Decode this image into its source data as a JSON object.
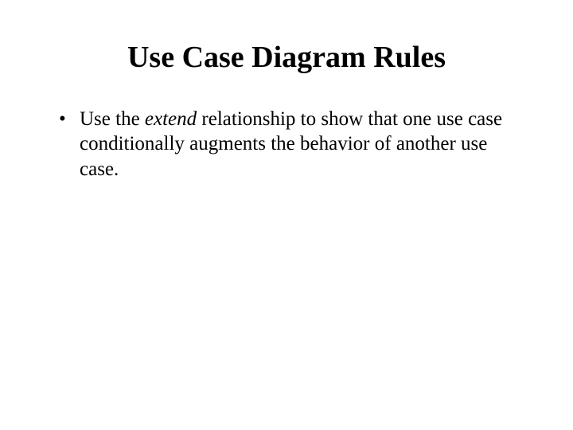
{
  "slide": {
    "title": "Use Case Diagram Rules",
    "bullet": {
      "pre": "Use the ",
      "italic": "extend",
      "post": " relationship to show that one use case conditionally augments the behavior of another use case."
    }
  },
  "styling": {
    "background_color": "#ffffff",
    "text_color": "#000000",
    "title_fontsize": 38,
    "title_fontweight": "bold",
    "body_fontsize": 25,
    "font_family": "Times New Roman"
  }
}
